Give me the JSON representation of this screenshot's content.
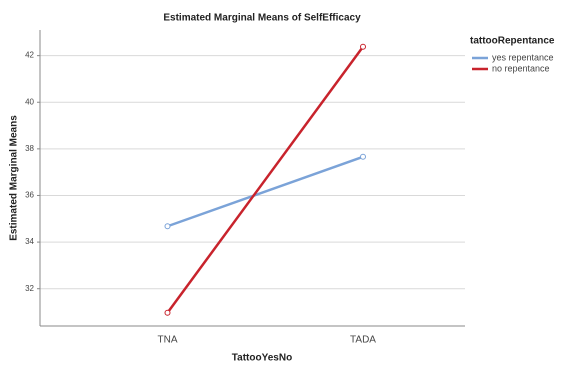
{
  "chart_data": {
    "type": "line",
    "title": "Estimated Marginal Means of SelfEfficacy",
    "x_label": "TattooYesNo",
    "y_label": "Estimated Marginal Means",
    "legend_title": "tattooRepentance",
    "categories": [
      "TNA",
      "TADA"
    ],
    "series": [
      {
        "name": "yes repentance",
        "color": "#7ba3d8",
        "values": [
          34.68,
          37.66
        ]
      },
      {
        "name": "no repentance",
        "color": "#c8232c",
        "values": [
          30.97,
          42.38
        ]
      }
    ],
    "ylim": [
      30.4,
      43.1
    ],
    "yticks": [
      32,
      34,
      36,
      38,
      40,
      42
    ],
    "grid": true,
    "legend": "right"
  }
}
